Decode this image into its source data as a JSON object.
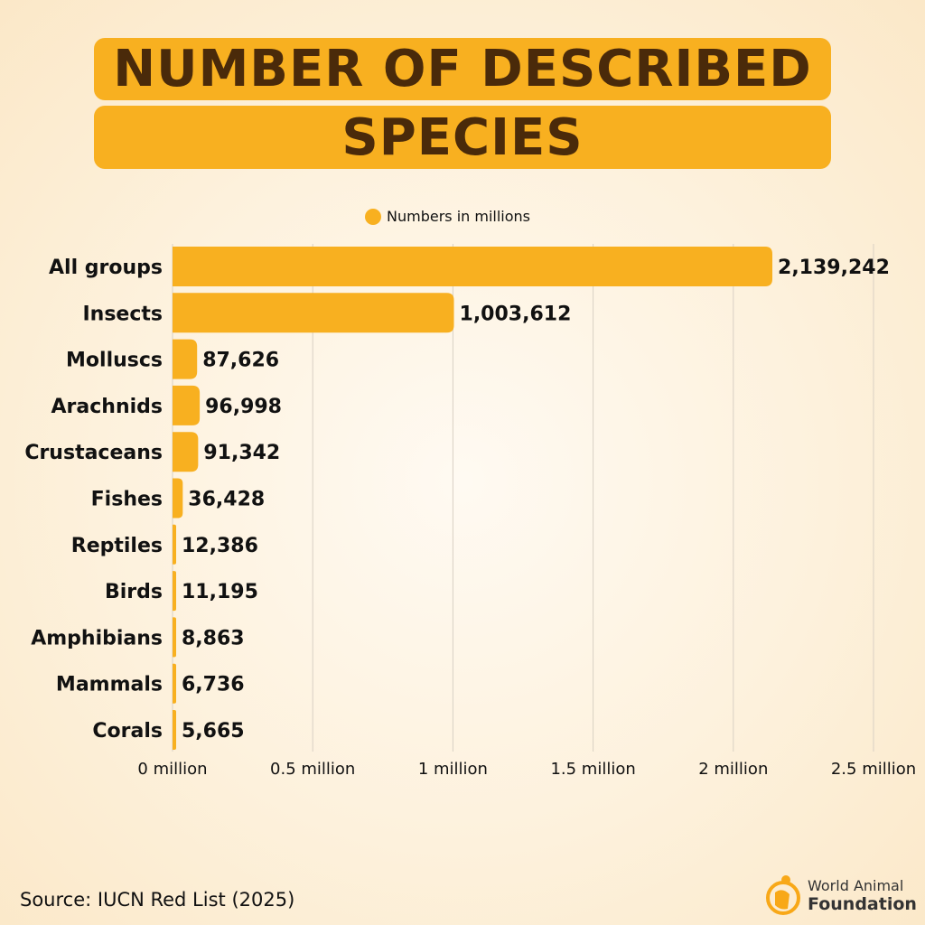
{
  "title_line1": "NUMBER OF DESCRIBED",
  "title_line2": "SPECIES",
  "source": "Source: IUCN Red List (2025)",
  "logo": {
    "line1": "World Animal",
    "line2": "Foundation"
  },
  "colors": {
    "bar": "#f8b020",
    "title_text": "#4a2a0a",
    "grid": "#d9d0c4"
  },
  "chart_data": {
    "type": "bar",
    "orientation": "horizontal",
    "legend": [
      "Numbers in millions"
    ],
    "legend_placement": "top-center",
    "categories": [
      "All groups",
      "Insects",
      "Molluscs",
      "Arachnids",
      "Crustaceans",
      "Fishes",
      "Reptiles",
      "Birds",
      "Amphibians",
      "Mammals",
      "Corals"
    ],
    "values": [
      2139242,
      1003612,
      87626,
      96998,
      91342,
      36428,
      12386,
      11195,
      8863,
      6736,
      5665
    ],
    "value_labels": [
      "2,139,242",
      "1,003,612",
      "87,626",
      "96,998",
      "91,342",
      "36,428",
      "12,386",
      "11,195",
      "8,863",
      "6,736",
      "5,665"
    ],
    "xlim": [
      0,
      2500000
    ],
    "xticks": [
      0,
      500000,
      1000000,
      1500000,
      2000000,
      2500000
    ],
    "xtick_labels": [
      "0 million",
      "0.5 million",
      "1 million",
      "1.5 million",
      "2 million",
      "2.5 million"
    ],
    "grid": "vertical"
  }
}
